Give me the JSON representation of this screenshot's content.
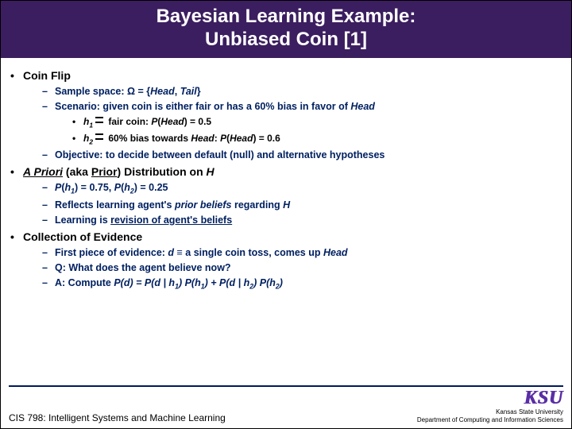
{
  "title_line1": "Bayesian Learning Example:",
  "title_line2": "Unbiased Coin [1]",
  "section1_title": "Coin Flip",
  "s1_b1_pre": "Sample space: ",
  "s1_b1_mid": "Ω = {",
  "s1_b1_h": "Head",
  "s1_b1_sep": ", ",
  "s1_b1_t": "Tail",
  "s1_b1_end": "}",
  "s1_b2_pre": "Scenario: given coin is either fair or has a 60% bias in favor of ",
  "s1_b2_h": "Head",
  "s1_sub1_pre": "h",
  "s1_sub1_sub": "1",
  "s1_sub1_mid": " fair coin: ",
  "s1_sub1_p": "P",
  "s1_sub1_par": "(",
  "s1_sub1_hd": "Head",
  "s1_sub1_end": ") = 0.5",
  "s1_sub2_pre": "h",
  "s1_sub2_sub": "2",
  "s1_sub2_mid": " 60% bias towards ",
  "s1_sub2_hd1": "Head",
  "s1_sub2_colon": ": ",
  "s1_sub2_p": "P",
  "s1_sub2_par": "(",
  "s1_sub2_hd2": "Head",
  "s1_sub2_end": ") = 0.6",
  "s1_b3": "Objective: to decide between default (null) and alternative hypotheses",
  "section2_pre": "A Priori",
  "section2_mid": " (aka ",
  "section2_prior": "Prior",
  "section2_end": ") Distribution on ",
  "section2_h": "H",
  "s2_b1_p1": "P",
  "s2_b1_p2": "(",
  "s2_b1_h1": "h",
  "s2_b1_s1": "1",
  "s2_b1_mid": ") = 0.75, ",
  "s2_b1_p3": "P",
  "s2_b1_p4": "(",
  "s2_b1_h2": "h",
  "s2_b1_s2": "2",
  "s2_b1_end": ") = 0.25",
  "s2_b2_pre": "Reflects learning agent's ",
  "s2_b2_it": "prior beliefs",
  "s2_b2_end": " regarding ",
  "s2_b2_h": "H",
  "s2_b3_pre": "Learning is ",
  "s2_b3_u": "revision of agent's beliefs",
  "section3_title": "Collection of Evidence",
  "s3_b1_pre": "First piece of evidence: ",
  "s3_b1_d": "d ",
  "s3_b1_eq": "≡",
  "s3_b1_mid": " a single coin toss, comes up ",
  "s3_b1_h": "Head",
  "s3_b2": "Q: What does the agent believe now?",
  "s3_b3_pre": "A: Compute ",
  "s3_b3_f": "P(d) = P(d | h₁) P(h₁) + P(d | h₂) P(h₂)",
  "footer_left": "CIS 798: Intelligent Systems and Machine Learning",
  "ksu": "KSU",
  "footer_r1": "Kansas State University",
  "footer_r2": "Department of Computing and Information Sciences",
  "colors": {
    "banner_bg": "#3b1e5f",
    "banner_text": "#ffffff",
    "lvl2_text": "#002060",
    "footer_line": "#001a5c",
    "logo": "#5a2ea6"
  }
}
